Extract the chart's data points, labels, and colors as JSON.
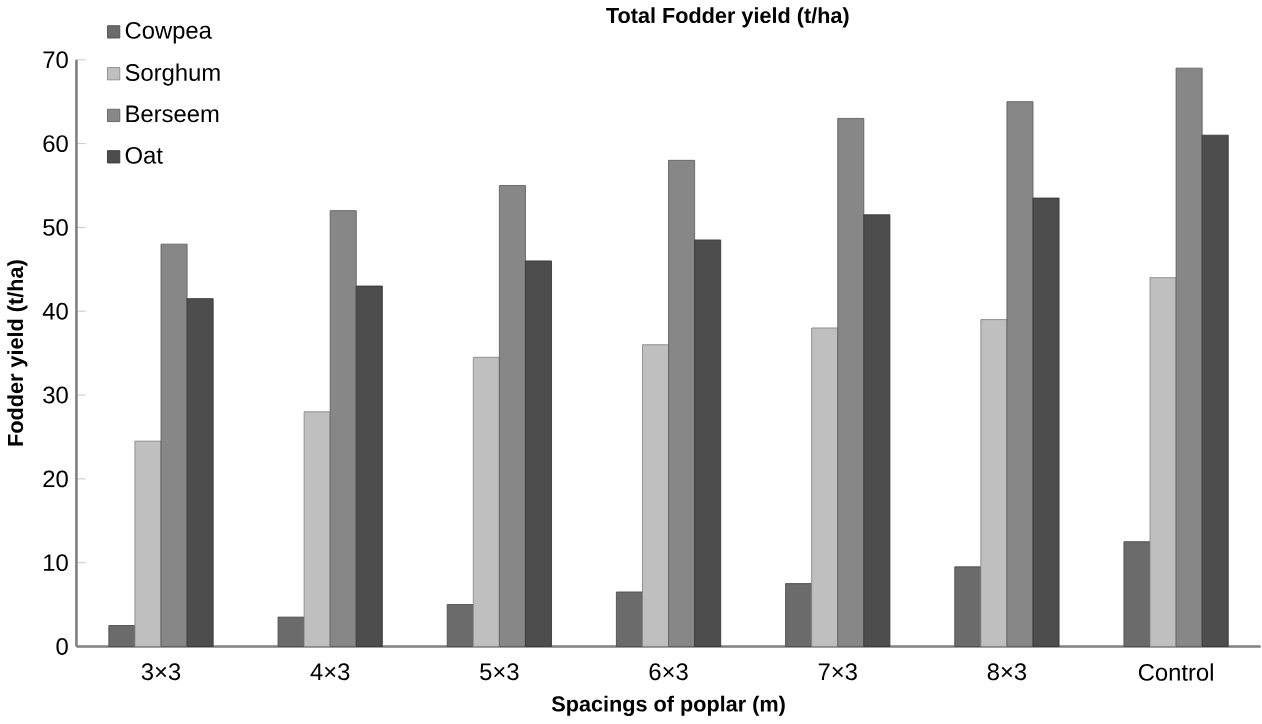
{
  "chart_data": {
    "type": "bar",
    "title": "Total Fodder yield (t/ha)",
    "xlabel": "Spacings of poplar (m)",
    "ylabel": "Fodder yield (t/ha)",
    "categories": [
      "3×3",
      "4×3",
      "5×3",
      "6×3",
      "7×3",
      "8×3",
      "Control"
    ],
    "series": [
      {
        "name": "Cowpea",
        "color": "#6b6b6b",
        "values": [
          2.5,
          3.5,
          5,
          6.5,
          7.5,
          9.5,
          12.5
        ]
      },
      {
        "name": "Sorghum",
        "color": "#bfbfbf",
        "values": [
          24.5,
          28,
          34.5,
          36,
          38,
          39,
          44
        ]
      },
      {
        "name": "Berseem",
        "color": "#878787",
        "values": [
          48,
          52,
          55,
          58,
          63,
          65,
          69
        ]
      },
      {
        "name": "Oat",
        "color": "#4d4d4d",
        "values": [
          41.5,
          43,
          46,
          48.5,
          51.5,
          53.5,
          61
        ]
      }
    ],
    "ylim": [
      0,
      70
    ],
    "yticks": [
      0,
      10,
      20,
      30,
      40,
      50,
      60,
      70
    ],
    "grid": false,
    "legend": "top left"
  }
}
